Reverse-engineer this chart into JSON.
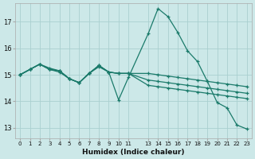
{
  "xlabel": "Humidex (Indice chaleur)",
  "bg_color": "#cce8e8",
  "grid_color": "#aad0d0",
  "line_color": "#1a7a6a",
  "xlim": [
    -0.5,
    23.5
  ],
  "ylim": [
    12.6,
    17.7
  ],
  "yticks": [
    13,
    14,
    15,
    16,
    17
  ],
  "xtick_positions": [
    0,
    1,
    2,
    3,
    4,
    5,
    6,
    7,
    8,
    9,
    10,
    11,
    13,
    14,
    15,
    16,
    17,
    18,
    19,
    20,
    21,
    22,
    23
  ],
  "xtick_labels": [
    "0",
    "1",
    "2",
    "3",
    "4",
    "5",
    "6",
    "7",
    "8",
    "9",
    "10",
    "11",
    "13",
    "14",
    "15",
    "16",
    "17",
    "18",
    "19",
    "20",
    "21",
    "22",
    "23"
  ],
  "lines": [
    {
      "x": [
        0,
        1,
        2,
        3,
        4,
        5,
        6,
        7,
        8,
        9,
        10,
        11,
        13,
        14,
        15,
        16,
        17,
        18,
        19,
        20,
        21,
        22,
        23
      ],
      "y": [
        15.0,
        15.2,
        15.4,
        15.2,
        15.15,
        14.85,
        14.7,
        15.05,
        15.35,
        15.1,
        14.05,
        14.9,
        16.55,
        17.5,
        17.2,
        16.6,
        15.9,
        15.5,
        14.75,
        13.95,
        13.75,
        13.1,
        12.95
      ]
    },
    {
      "x": [
        0,
        1,
        2,
        3,
        4,
        5,
        6,
        7,
        8,
        9,
        10,
        11,
        13,
        14,
        15,
        16,
        17,
        18,
        19,
        20,
        21,
        22,
        23
      ],
      "y": [
        15.0,
        15.2,
        15.4,
        15.25,
        15.15,
        14.85,
        14.7,
        15.05,
        15.35,
        15.1,
        15.05,
        15.05,
        15.05,
        15.0,
        14.95,
        14.9,
        14.85,
        14.8,
        14.75,
        14.7,
        14.65,
        14.6,
        14.55
      ]
    },
    {
      "x": [
        0,
        1,
        2,
        3,
        4,
        5,
        6,
        7,
        8,
        9,
        10,
        11,
        13,
        14,
        15,
        16,
        17,
        18,
        19,
        20,
        21,
        22,
        23
      ],
      "y": [
        15.0,
        15.2,
        15.4,
        15.2,
        15.15,
        14.85,
        14.7,
        15.05,
        15.35,
        15.1,
        15.05,
        15.05,
        14.8,
        14.75,
        14.7,
        14.65,
        14.6,
        14.55,
        14.5,
        14.45,
        14.4,
        14.35,
        14.3
      ]
    },
    {
      "x": [
        0,
        1,
        2,
        3,
        4,
        5,
        6,
        7,
        8,
        9,
        10,
        11,
        13,
        14,
        15,
        16,
        17,
        18,
        19,
        20,
        21,
        22,
        23
      ],
      "y": [
        15.0,
        15.2,
        15.4,
        15.2,
        15.1,
        14.85,
        14.7,
        15.05,
        15.3,
        15.1,
        15.05,
        15.05,
        14.6,
        14.55,
        14.5,
        14.45,
        14.4,
        14.35,
        14.3,
        14.25,
        14.2,
        14.15,
        14.1
      ]
    }
  ]
}
